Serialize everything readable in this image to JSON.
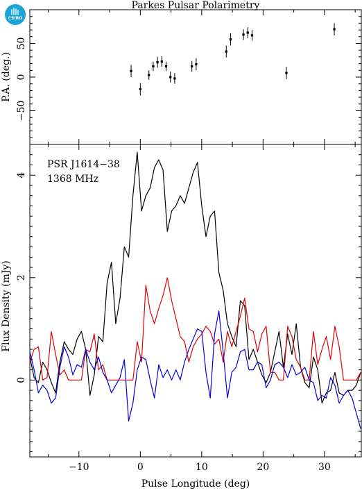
{
  "chart_data": {
    "type": "line",
    "title": "Parkes Pulsar Polarimetry",
    "xlabel": "Pulse Longitude (deg)",
    "xlim": [
      -18,
      36
    ],
    "x_ticks": [
      -10,
      0,
      10,
      20,
      30
    ],
    "logo_text": "CSIRO",
    "pa_panel": {
      "ylabel": "P.A. (deg.)",
      "ylim": [
        -100,
        100
      ],
      "y_ticks": [
        -50,
        0,
        50
      ],
      "points": [
        {
          "x": -1.5,
          "y": 9,
          "err": 9
        },
        {
          "x": 0,
          "y": -18,
          "err": 9
        },
        {
          "x": 1.4,
          "y": 3,
          "err": 7
        },
        {
          "x": 2.1,
          "y": 16,
          "err": 7
        },
        {
          "x": 2.8,
          "y": 22,
          "err": 8
        },
        {
          "x": 3.5,
          "y": 23,
          "err": 8
        },
        {
          "x": 4.2,
          "y": 16,
          "err": 7
        },
        {
          "x": 4.9,
          "y": 0,
          "err": 8
        },
        {
          "x": 5.6,
          "y": -2,
          "err": 8
        },
        {
          "x": 8.4,
          "y": 16,
          "err": 8
        },
        {
          "x": 9.1,
          "y": 19,
          "err": 9
        },
        {
          "x": 14,
          "y": 38,
          "err": 9
        },
        {
          "x": 14.7,
          "y": 56,
          "err": 9
        },
        {
          "x": 16.8,
          "y": 63,
          "err": 8
        },
        {
          "x": 17.5,
          "y": 66,
          "err": 8
        },
        {
          "x": 18.2,
          "y": 62,
          "err": 8
        },
        {
          "x": 23.8,
          "y": 6,
          "err": 9
        },
        {
          "x": 31.6,
          "y": 71,
          "err": 9
        }
      ]
    },
    "flux_panel": {
      "ylabel": "Flux Density (mJy)",
      "ylim": [
        -1.5,
        4.6
      ],
      "y_ticks": [
        0,
        2,
        4
      ],
      "annotations": [
        "PSR J1614−38",
        "1368 MHz"
      ],
      "x": [
        -18,
        -17.3,
        -16.6,
        -15.9,
        -15.2,
        -14.5,
        -13.8,
        -13.1,
        -12.4,
        -11.7,
        -11,
        -10.3,
        -9.6,
        -8.9,
        -8.2,
        -7.5,
        -6.8,
        -6.1,
        -5.4,
        -4.7,
        -4,
        -3.3,
        -2.6,
        -1.9,
        -1.2,
        -0.5,
        0.2,
        0.9,
        1.6,
        2.3,
        3,
        3.7,
        4.4,
        5.1,
        5.8,
        6.5,
        7.2,
        7.9,
        8.6,
        9.3,
        10,
        10.7,
        11.4,
        12.1,
        12.8,
        13.5,
        14.2,
        14.9,
        15.6,
        16.3,
        17,
        17.7,
        18.4,
        19.1,
        19.8,
        20.5,
        21.2,
        21.9,
        22.6,
        23.3,
        24,
        24.7,
        25.4,
        26.1,
        26.8,
        27.5,
        28.2,
        28.9,
        29.6,
        30.3,
        31,
        31.7,
        32.4,
        33.1,
        33.8,
        34.5,
        35.2,
        35.9
      ],
      "series": [
        {
          "name": "",
          "color": "#000000",
          "values": [
            0.45,
            0.05,
            -0.05,
            0.35,
            0.2,
            -0.05,
            -0.25,
            0.35,
            0.75,
            0.6,
            0.5,
            0.8,
            0.95,
            0.6,
            -0.3,
            0.1,
            0.85,
            0.75,
            1.9,
            2.3,
            1.1,
            1.6,
            2.6,
            2.4,
            3.6,
            4.45,
            3.3,
            3.6,
            3.75,
            4.15,
            4.3,
            4.1,
            2.9,
            3.3,
            3.4,
            3.6,
            3.45,
            3.75,
            4.05,
            4.25,
            3.4,
            2.8,
            3.2,
            3.3,
            2.1,
            1.75,
            1.1,
            0.85,
            0.65,
            1.55,
            1.45,
            0.4,
            0.6,
            0.35,
            0.1,
            -0.05,
            0.15,
            0.55,
            0.95,
            0.25,
            0.9,
            0.5,
            1.1,
            0.25,
            -0.05,
            -0.15,
            0.45,
            0.2,
            -0.45,
            -0.25,
            -0.2,
            0.15,
            -0.25,
            -0.3,
            -0.2,
            -0.2,
            -0.1,
            0.15
          ]
        },
        {
          "name": "",
          "color": "#e00000",
          "values": [
            0.35,
            0.6,
            0.65,
            0.0,
            0.05,
            0.95,
            0.5,
            0.1,
            0.2,
            0.0,
            0.0,
            0.0,
            0.0,
            0.6,
            0.55,
            0.9,
            0.2,
            0.3,
            0.0,
            0.0,
            0.0,
            0.0,
            0.0,
            0.0,
            0.0,
            0.75,
            0.35,
            1.85,
            1.35,
            1.1,
            1.4,
            1.65,
            2.0,
            1.55,
            1.2,
            0.85,
            0.75,
            0.35,
            0.65,
            0.8,
            0.9,
            1.05,
            0.95,
            0.7,
            0.8,
            0.35,
            0.95,
            0.65,
            0.95,
            1.25,
            1.6,
            1.0,
            0.95,
            0.55,
            0.9,
            1.05,
            0.15,
            0.15,
            0.0,
            0.0,
            1.05,
            0.85,
            0.4,
            0.25,
            0.0,
            0.0,
            0.95,
            0.3,
            0.6,
            0.85,
            0.4,
            1.05,
            0.65,
            0.0,
            0.0,
            0.0,
            0.0,
            0.15
          ]
        },
        {
          "name": "",
          "color": "#0000e0",
          "values": [
            0.55,
            0.2,
            -0.25,
            -0.1,
            -0.2,
            -0.45,
            -0.35,
            0.25,
            0.65,
            0.45,
            0.1,
            0.3,
            0.25,
            0.6,
            0.35,
            0.2,
            0.45,
            0.15,
            0.0,
            -0.25,
            -0.1,
            0.05,
            0.4,
            -0.8,
            -0.45,
            0.2,
            0.45,
            0.4,
            0.0,
            -0.35,
            0.3,
            0.05,
            0.2,
            0.0,
            0.2,
            0.0,
            0.35,
            0.6,
            0.8,
            1.0,
            0.95,
            0.15,
            -0.35,
            0.9,
            1.35,
            0.55,
            -0.35,
            0.15,
            0.25,
            0.55,
            0.6,
            0.2,
            0.2,
            0.35,
            0.3,
            -0.15,
            0.0,
            0.3,
            0.35,
            0.25,
            0.05,
            0.3,
            0.1,
            0.15,
            0.25,
            0.0,
            -0.05,
            -0.4,
            -0.3,
            -0.35,
            0.05,
            -0.1,
            -0.45,
            -0.3,
            -0.2,
            -0.35,
            -0.65,
            -0.95
          ]
        }
      ]
    }
  }
}
